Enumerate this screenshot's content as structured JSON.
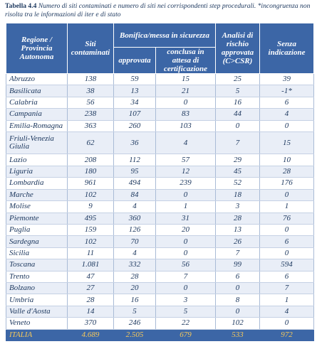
{
  "caption": {
    "prefix": "Tabella 4.4",
    "text": " Numero di siti contaminati e numero di siti nei corrispondenti step procedurali. *incongruenza non risolta tra le informazioni di iter e di stato"
  },
  "headers": {
    "regione": "Regione / Provincia Autonoma",
    "siti": "Siti contaminati",
    "bonifica": "Bonifica/messa in sicurezza",
    "approvata": "approvata",
    "conclusa": "conclusa in attesa di certificazione",
    "analisi": "Analisi di rischio approvata (C>CSR)",
    "senza": "Senza indicazione"
  },
  "rows": [
    {
      "region": "Abruzzo",
      "siti": "138",
      "approvata": "59",
      "conclusa": "15",
      "analisi": "25",
      "senza": "39"
    },
    {
      "region": "Basilicata",
      "siti": "38",
      "approvata": "13",
      "conclusa": "21",
      "analisi": "5",
      "senza": "-1*"
    },
    {
      "region": "Calabria",
      "siti": "56",
      "approvata": "34",
      "conclusa": "0",
      "analisi": "16",
      "senza": "6"
    },
    {
      "region": "Campania",
      "siti": "238",
      "approvata": "107",
      "conclusa": "83",
      "analisi": "44",
      "senza": "4"
    },
    {
      "region": "Emilia-Romagna",
      "siti": "363",
      "approvata": "260",
      "conclusa": "103",
      "analisi": "0",
      "senza": "0"
    },
    {
      "region": "Friuli-Venezia Giulia",
      "siti": "62",
      "approvata": "36",
      "conclusa": "4",
      "analisi": "7",
      "senza": "15"
    },
    {
      "region": "Lazio",
      "siti": "208",
      "approvata": "112",
      "conclusa": "57",
      "analisi": "29",
      "senza": "10"
    },
    {
      "region": "Liguria",
      "siti": "180",
      "approvata": "95",
      "conclusa": "12",
      "analisi": "45",
      "senza": "28"
    },
    {
      "region": "Lombardia",
      "siti": "961",
      "approvata": "494",
      "conclusa": "239",
      "analisi": "52",
      "senza": "176"
    },
    {
      "region": "Marche",
      "siti": "102",
      "approvata": "84",
      "conclusa": "0",
      "analisi": "18",
      "senza": "0"
    },
    {
      "region": "Molise",
      "siti": "9",
      "approvata": "4",
      "conclusa": "1",
      "analisi": "3",
      "senza": "1"
    },
    {
      "region": "Piemonte",
      "siti": "495",
      "approvata": "360",
      "conclusa": "31",
      "analisi": "28",
      "senza": "76"
    },
    {
      "region": "Puglia",
      "siti": "159",
      "approvata": "126",
      "conclusa": "20",
      "analisi": "13",
      "senza": "0"
    },
    {
      "region": "Sardegna",
      "siti": "102",
      "approvata": "70",
      "conclusa": "0",
      "analisi": "26",
      "senza": "6"
    },
    {
      "region": "Sicilia",
      "siti": "11",
      "approvata": "4",
      "conclusa": "0",
      "analisi": "7",
      "senza": "0"
    },
    {
      "region": "Toscana",
      "siti": "1.081",
      "approvata": "332",
      "conclusa": "56",
      "analisi": "99",
      "senza": "594"
    },
    {
      "region": "Trento",
      "siti": "47",
      "approvata": "28",
      "conclusa": "7",
      "analisi": "6",
      "senza": "6"
    },
    {
      "region": "Bolzano",
      "siti": "27",
      "approvata": "20",
      "conclusa": "0",
      "analisi": "0",
      "senza": "7"
    },
    {
      "region": "Umbria",
      "siti": "28",
      "approvata": "16",
      "conclusa": "3",
      "analisi": "8",
      "senza": "1"
    },
    {
      "region": "Valle d'Aosta",
      "siti": "14",
      "approvata": "5",
      "conclusa": "5",
      "analisi": "0",
      "senza": "4"
    },
    {
      "region": "Veneto",
      "siti": "370",
      "approvata": "246",
      "conclusa": "22",
      "analisi": "102",
      "senza": "0"
    }
  ],
  "total": {
    "region": "ITALIA",
    "siti": "4.689",
    "approvata": "2.505",
    "conclusa": "679",
    "analisi": "533",
    "senza": "972"
  },
  "colors": {
    "header_bg": "#3c66a6",
    "text": "#1f3a60",
    "total_text": "#f6c85a",
    "stripe": "#e9eef7"
  }
}
